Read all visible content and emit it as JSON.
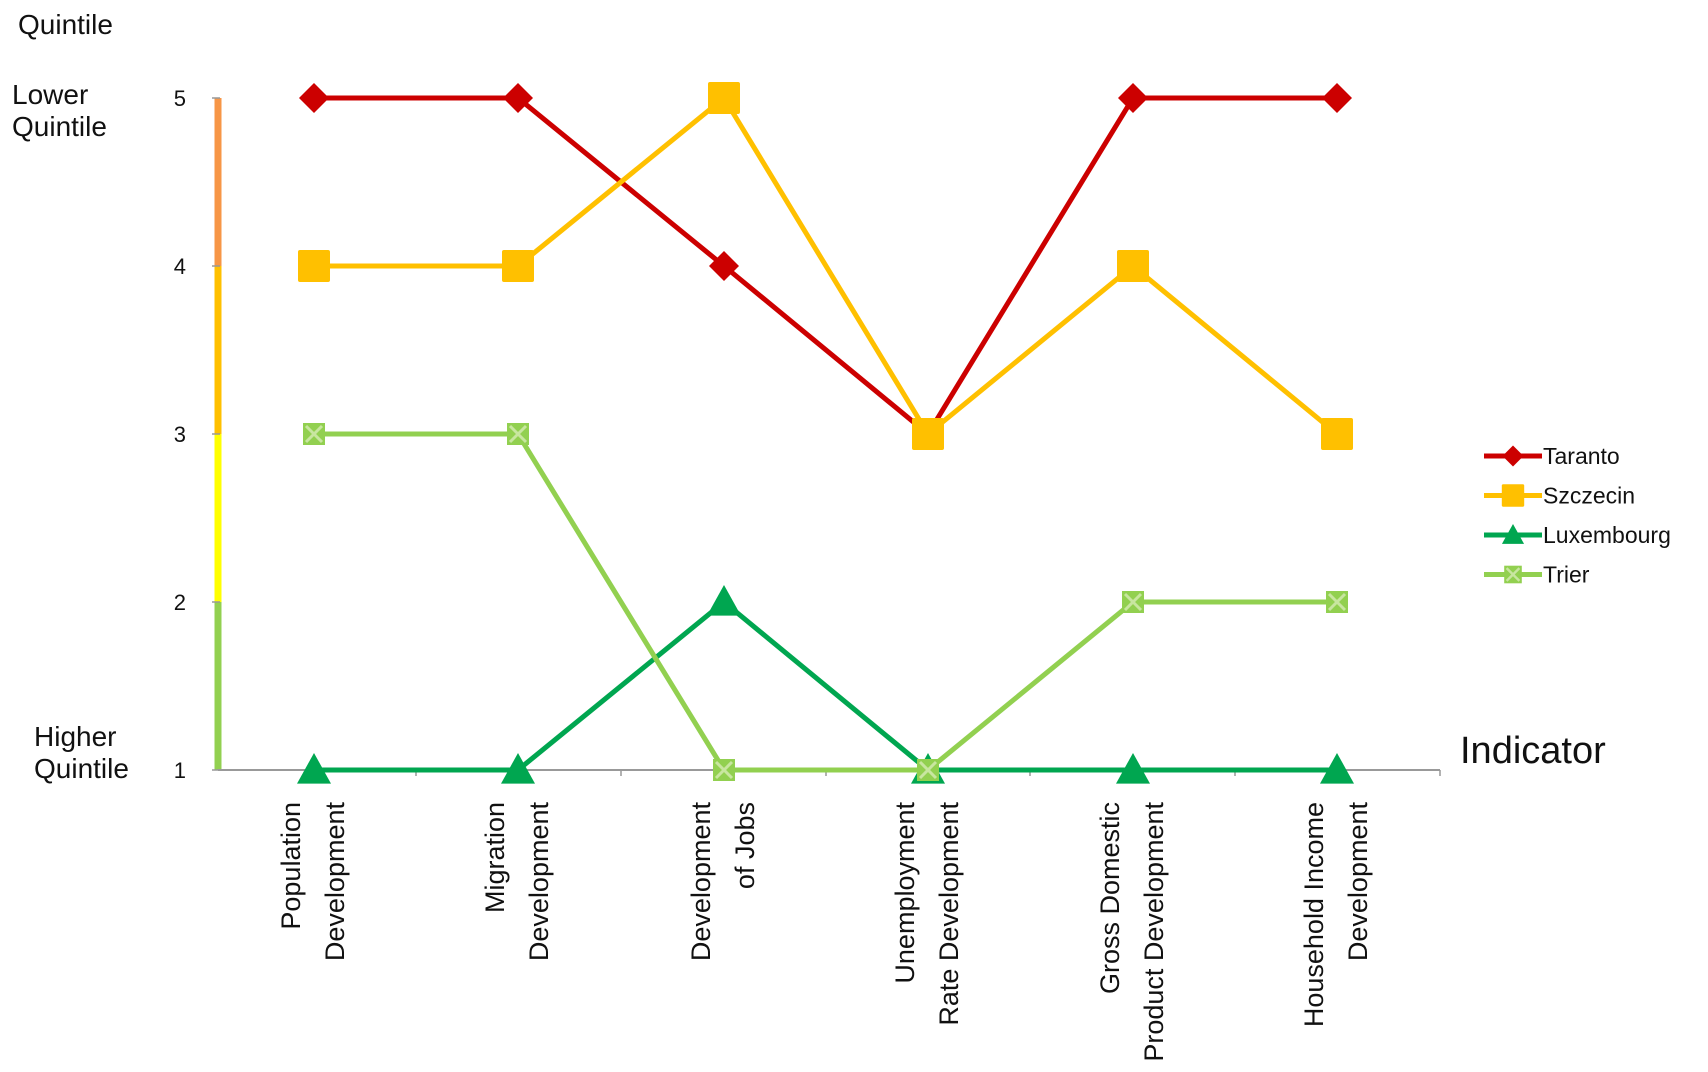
{
  "chart_data": {
    "type": "line",
    "title": "",
    "ylabel": "Quintile",
    "xlabel": "Indicator",
    "y_top_label": [
      "Lower",
      "Quintile"
    ],
    "y_bottom_label": [
      "Higher",
      "Quintile"
    ],
    "ylim": [
      1,
      5
    ],
    "yticks": [
      "1",
      "2",
      "3",
      "4",
      "5"
    ],
    "categories": [
      [
        "Population",
        "Development"
      ],
      [
        "Migration",
        "Development"
      ],
      [
        "Development",
        "of Jobs"
      ],
      [
        "Unemployment",
        "Rate Development"
      ],
      [
        "Gross Domestic",
        "Product Development"
      ],
      [
        "Household Income",
        "Development"
      ]
    ],
    "scale_bar_colors": [
      "#92d050",
      "#ffff00",
      "#ffc000",
      "#f79646"
    ],
    "series": [
      {
        "name": "Taranto",
        "values": [
          5,
          5,
          4,
          3,
          5,
          5
        ],
        "color": "#cc0000",
        "marker": "diamond"
      },
      {
        "name": "Szczecin",
        "values": [
          4,
          4,
          5,
          3,
          4,
          3
        ],
        "color": "#ffc000",
        "marker": "square"
      },
      {
        "name": "Luxembourg",
        "values": [
          1,
          1,
          2,
          1,
          1,
          1
        ],
        "color": "#00a650",
        "marker": "triangle"
      },
      {
        "name": "Trier",
        "values": [
          3,
          3,
          1,
          1,
          2,
          2
        ],
        "color": "#92d050",
        "marker": "cross"
      }
    ],
    "legend_position": "right",
    "grid": false
  }
}
